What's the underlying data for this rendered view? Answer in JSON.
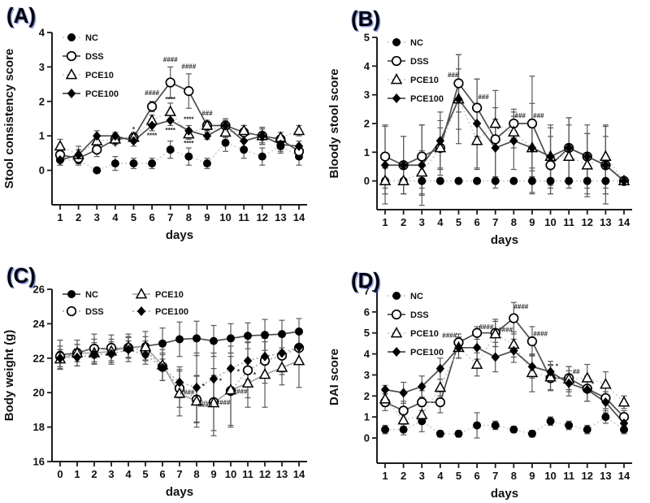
{
  "figure": {
    "background": "#ffffff",
    "axis_color": "#1c1c1c",
    "dark_line_color": "#4d4d4d",
    "light_line_color": "#c4c4c4",
    "mid_line_color": "#9a9a9a",
    "error_bar_color": "#5a5a5a",
    "annotation_color": "#1c1c1c"
  },
  "chart_data": [
    {
      "panel_label": "(A)",
      "type": "line",
      "title": "",
      "xlabel": "days",
      "ylabel": "Stool consistency score",
      "x": [
        1,
        2,
        3,
        4,
        5,
        6,
        7,
        8,
        9,
        10,
        11,
        12,
        13,
        14
      ],
      "yticks": [
        0,
        1,
        2,
        3,
        4
      ],
      "ylim": [
        -1,
        4
      ],
      "legend": {
        "position": "top-left",
        "cols": 1
      },
      "series": [
        {
          "name": "NC",
          "marker": "filled-circle",
          "line": "dotted-light",
          "values": [
            0.3,
            0.3,
            0.0,
            0.2,
            0.2,
            0.2,
            0.6,
            0.4,
            0.2,
            0.8,
            0.6,
            0.4,
            0.7,
            0.4
          ],
          "err": [
            0.15,
            0.15,
            0.05,
            0.2,
            0.15,
            0.15,
            0.25,
            0.25,
            0.15,
            0.25,
            0.25,
            0.25,
            0.2,
            0.25
          ]
        },
        {
          "name": "DSS",
          "marker": "open-circle",
          "line": "solid-dark",
          "values": [
            0.45,
            0.35,
            0.6,
            0.9,
            0.95,
            1.85,
            2.55,
            2.3,
            1.3,
            1.3,
            1.1,
            1.0,
            0.9,
            0.55
          ],
          "err": [
            0.2,
            0.15,
            0.2,
            0.15,
            0.15,
            0.15,
            0.45,
            0.5,
            0.15,
            0.2,
            0.2,
            0.25,
            0.1,
            0.15
          ]
        },
        {
          "name": "PCE10",
          "marker": "open-triangle",
          "line": "dotted-light",
          "values": [
            0.7,
            0.45,
            0.85,
            0.9,
            0.95,
            1.45,
            1.7,
            1.05,
            1.3,
            1.1,
            1.15,
            1.0,
            0.95,
            1.15
          ],
          "err": [
            0.2,
            0.25,
            0.15,
            0.15,
            0.1,
            0.15,
            0.25,
            0.15,
            0.1,
            0.15,
            0.15,
            0.25,
            0.15,
            0.15
          ]
        },
        {
          "name": "PCE100",
          "marker": "filled-diamond",
          "line": "solid-dark",
          "values": [
            0.3,
            0.45,
            1.0,
            1.0,
            0.85,
            1.3,
            1.45,
            1.15,
            1.0,
            1.3,
            0.85,
            1.0,
            0.75,
            0.7
          ],
          "err": [
            0.15,
            0.15,
            0.15,
            0.1,
            0.15,
            0.15,
            0.15,
            0.15,
            0.1,
            0.15,
            0.25,
            0.2,
            0.2,
            0.15
          ]
        }
      ],
      "annotations": [
        {
          "x": 4,
          "y": 0.62,
          "text": "*"
        },
        {
          "x": 5,
          "y": 1.12,
          "text": "*"
        },
        {
          "x": 6,
          "y": 2.18,
          "text": "####"
        },
        {
          "x": 6,
          "y": 0.95,
          "text": "****"
        },
        {
          "x": 7,
          "y": 3.15,
          "text": "####"
        },
        {
          "x": 7,
          "y": 2.0,
          "text": "****"
        },
        {
          "x": 7,
          "y": 1.1,
          "text": "****"
        },
        {
          "x": 8,
          "y": 2.95,
          "text": "####"
        },
        {
          "x": 8,
          "y": 1.42,
          "text": "****"
        },
        {
          "x": 8,
          "y": 0.72,
          "text": "****"
        },
        {
          "x": 9,
          "y": 1.6,
          "text": "###"
        }
      ]
    },
    {
      "panel_label": "(B)",
      "type": "line",
      "title": "",
      "xlabel": "days",
      "ylabel": "Bloody stool score",
      "x": [
        1,
        2,
        3,
        4,
        5,
        6,
        7,
        8,
        9,
        10,
        11,
        12,
        13,
        14
      ],
      "yticks": [
        0,
        1,
        2,
        3,
        4,
        5
      ],
      "ylim": [
        -1,
        5
      ],
      "legend": {
        "position": "top-left",
        "cols": 1
      },
      "series": [
        {
          "name": "NC",
          "marker": "filled-circle",
          "line": "dotted-light",
          "values": [
            0,
            0,
            0,
            0,
            0,
            0,
            0,
            0,
            0,
            0,
            0,
            0,
            0,
            0
          ],
          "err": [
            0.45,
            0.45,
            0.5,
            0,
            0,
            0,
            0,
            0,
            0.45,
            0.45,
            0,
            0.45,
            0.45,
            0
          ]
        },
        {
          "name": "DSS",
          "marker": "open-circle",
          "line": "solid-dark",
          "values": [
            0.85,
            0.55,
            0.85,
            1.15,
            3.4,
            2.55,
            1.45,
            2.0,
            2.0,
            0.55,
            1.15,
            0.85,
            0.55,
            0.0
          ],
          "err": [
            1.1,
            1.0,
            1.1,
            0.7,
            1.0,
            1.0,
            1.7,
            0.5,
            1.65,
            1.0,
            1.05,
            1.1,
            1.35,
            0.05
          ]
        },
        {
          "name": "PCE10",
          "marker": "open-triangle",
          "line": "dotted-light",
          "values": [
            0.0,
            0.0,
            0.3,
            1.15,
            2.85,
            1.4,
            2.0,
            1.7,
            1.15,
            0.85,
            0.85,
            0.55,
            0.85,
            0.0
          ],
          "err": [
            0.45,
            0.45,
            0.75,
            0.95,
            1.55,
            1.0,
            0.55,
            0.55,
            1.0,
            1.0,
            1.1,
            1.1,
            1.1,
            0.05
          ]
        },
        {
          "name": "PCE100",
          "marker": "filled-diamond",
          "line": "solid-dark",
          "values": [
            0.55,
            0.55,
            0.55,
            1.4,
            2.85,
            2.0,
            1.15,
            1.4,
            1.15,
            0.85,
            1.15,
            0.85,
            0.55,
            0.0
          ],
          "err": [
            1.35,
            1.0,
            1.4,
            1.0,
            1.05,
            1.55,
            1.0,
            1.0,
            1.55,
            1.1,
            1.05,
            0.8,
            1.0,
            0.05
          ]
        }
      ],
      "annotations": [
        {
          "x": 4.7,
          "y": 3.62,
          "text": "###"
        },
        {
          "x": 6.35,
          "y": 2.85,
          "text": "###"
        },
        {
          "x": 7.15,
          "y": 1.72,
          "text": "*"
        },
        {
          "x": 8.35,
          "y": 2.2,
          "text": "###"
        },
        {
          "x": 9.35,
          "y": 2.2,
          "text": "###"
        }
      ]
    },
    {
      "panel_label": "(C)",
      "type": "line",
      "title": "",
      "xlabel": "days",
      "ylabel": "Body weight (g)",
      "x": [
        0,
        1,
        2,
        3,
        4,
        5,
        6,
        7,
        8,
        9,
        10,
        11,
        12,
        13,
        14
      ],
      "yticks": [
        16,
        18,
        20,
        22,
        24,
        26
      ],
      "ylim": [
        16,
        26
      ],
      "legend": {
        "position": "top-left",
        "cols": 2
      },
      "series": [
        {
          "name": "NC",
          "marker": "filled-circle",
          "line": "solid-dark",
          "values": [
            22.2,
            22.3,
            22.6,
            22.5,
            22.6,
            22.7,
            22.85,
            23.1,
            23.15,
            23.0,
            23.15,
            23.3,
            23.35,
            23.4,
            23.55
          ],
          "err": [
            0.85,
            0.75,
            0.8,
            0.85,
            0.8,
            0.85,
            0.9,
            1.0,
            1.0,
            0.9,
            0.85,
            0.75,
            0.9,
            0.8,
            0.75
          ]
        },
        {
          "name": "DSS",
          "marker": "open-circle",
          "line": "dotted-mid",
          "values": [
            22.1,
            22.3,
            22.55,
            22.6,
            22.6,
            22.45,
            21.5,
            20.25,
            19.6,
            19.45,
            20.1,
            21.3,
            21.85,
            22.15,
            22.6
          ],
          "err": [
            0.6,
            0.5,
            0.55,
            0.5,
            0.6,
            0.55,
            0.8,
            1.1,
            1.35,
            1.95,
            2.0,
            1.6,
            1.3,
            1.1,
            0.9
          ]
        },
        {
          "name": "PCE10",
          "marker": "open-triangle",
          "line": "solid-mid",
          "values": [
            21.95,
            22.3,
            22.3,
            22.4,
            22.65,
            22.65,
            21.6,
            19.95,
            19.5,
            19.4,
            20.15,
            20.55,
            21.05,
            21.45,
            21.85
          ],
          "err": [
            0.55,
            0.5,
            0.6,
            0.55,
            0.6,
            0.6,
            0.9,
            1.3,
            1.5,
            1.6,
            2.15,
            1.4,
            1.9,
            1.0,
            1.55
          ]
        },
        {
          "name": "PCE100",
          "marker": "filled-diamond",
          "line": "dotted-mid",
          "values": [
            22.0,
            22.05,
            22.2,
            22.25,
            22.5,
            22.2,
            21.45,
            20.6,
            20.3,
            20.8,
            21.4,
            21.85,
            22.1,
            22.3,
            22.65
          ],
          "err": [
            0.5,
            0.5,
            0.55,
            0.5,
            0.5,
            0.55,
            0.75,
            0.9,
            2.0,
            1.5,
            1.3,
            1.1,
            1.2,
            1.1,
            1.0
          ]
        }
      ],
      "annotations": [
        {
          "x": 7.45,
          "y": 19.9,
          "text": "####"
        },
        {
          "x": 8.5,
          "y": 19.15,
          "text": "####"
        },
        {
          "x": 9.55,
          "y": 19.3,
          "text": "####"
        },
        {
          "x": 10.55,
          "y": 19.95,
          "text": "####"
        },
        {
          "x": 8.4,
          "y": 20.25,
          "text": "*"
        },
        {
          "x": 9.4,
          "y": 20.55,
          "text": "*"
        },
        {
          "x": 10.45,
          "y": 21.1,
          "text": "*"
        },
        {
          "x": 11.4,
          "y": 20.9,
          "text": "*"
        }
      ]
    },
    {
      "panel_label": "(D)",
      "type": "line",
      "title": "",
      "xlabel": "days",
      "ylabel": "DAI score",
      "x": [
        1,
        2,
        3,
        4,
        5,
        6,
        7,
        8,
        9,
        10,
        11,
        12,
        13,
        14
      ],
      "yticks": [
        0,
        1,
        2,
        3,
        4,
        5,
        6,
        7
      ],
      "ylim": [
        -1.2,
        7
      ],
      "legend": {
        "position": "top-left",
        "cols": 1
      },
      "series": [
        {
          "name": "NC",
          "marker": "filled-circle",
          "line": "dotted-light",
          "values": [
            0.4,
            0.4,
            0.8,
            0.2,
            0.2,
            0.6,
            0.6,
            0.4,
            0.2,
            0.8,
            0.6,
            0.4,
            1.0,
            0.4
          ],
          "err": [
            0.2,
            0.25,
            0.5,
            0.15,
            0.15,
            0.6,
            0.2,
            0.15,
            0.15,
            0.2,
            0.2,
            0.2,
            0.3,
            0.2
          ]
        },
        {
          "name": "DSS",
          "marker": "open-circle",
          "line": "solid-dark",
          "values": [
            1.7,
            1.3,
            1.7,
            1.7,
            4.55,
            5.0,
            5.0,
            5.7,
            4.6,
            2.85,
            2.85,
            2.35,
            1.9,
            1.0
          ],
          "err": [
            0.4,
            0.45,
            0.55,
            0.5,
            0.4,
            0.3,
            0.65,
            0.75,
            0.7,
            0.6,
            0.55,
            0.6,
            0.5,
            0.3
          ]
        },
        {
          "name": "PCE10",
          "marker": "open-triangle",
          "line": "dotted-light",
          "values": [
            1.85,
            0.85,
            1.1,
            2.4,
            4.3,
            3.5,
            4.95,
            4.45,
            3.1,
            2.9,
            2.8,
            2.85,
            2.55,
            1.7
          ],
          "err": [
            0.35,
            0.3,
            0.4,
            0.4,
            0.5,
            0.55,
            0.6,
            0.6,
            0.9,
            0.6,
            0.6,
            0.65,
            0.6,
            0.3
          ]
        },
        {
          "name": "PCE100",
          "marker": "filled-diamond",
          "line": "solid-dark",
          "values": [
            2.3,
            2.15,
            2.45,
            3.3,
            4.3,
            4.3,
            3.85,
            4.15,
            3.4,
            3.15,
            2.6,
            2.3,
            1.7,
            0.7
          ],
          "err": [
            0.2,
            0.5,
            0.5,
            0.5,
            0.5,
            0.55,
            0.7,
            0.55,
            0.55,
            0.5,
            0.6,
            0.55,
            0.5,
            0.3
          ]
        }
      ],
      "annotations": [
        {
          "x": 4.5,
          "y": 4.78,
          "text": "####"
        },
        {
          "x": 6.5,
          "y": 5.18,
          "text": "####"
        },
        {
          "x": 7.55,
          "y": 5.05,
          "text": "####"
        },
        {
          "x": 8.4,
          "y": 6.15,
          "text": "####"
        },
        {
          "x": 9.45,
          "y": 4.85,
          "text": "####"
        },
        {
          "x": 10.35,
          "y": 3.3,
          "text": "*"
        },
        {
          "x": 11.4,
          "y": 3.05,
          "text": "##"
        },
        {
          "x": 12.3,
          "y": 2.45,
          "text": "*"
        }
      ]
    }
  ]
}
